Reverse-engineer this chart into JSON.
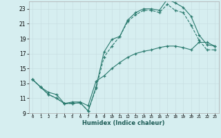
{
  "xlabel": "Humidex (Indice chaleur)",
  "ylabel": "",
  "background_color": "#d6eef0",
  "grid_color": "#c8dfe2",
  "line_color": "#2a7a6e",
  "xlim": [
    -0.5,
    23.5
  ],
  "ylim": [
    9,
    24
  ],
  "yticks": [
    9,
    11,
    13,
    15,
    17,
    19,
    21,
    23
  ],
  "xticks": [
    0,
    1,
    2,
    3,
    4,
    5,
    6,
    7,
    8,
    9,
    10,
    11,
    12,
    13,
    14,
    15,
    16,
    17,
    18,
    19,
    20,
    21,
    22,
    23
  ],
  "line1_x": [
    0,
    1,
    2,
    3,
    4,
    5,
    6,
    7,
    8,
    9,
    10,
    11,
    12,
    13,
    14,
    15,
    16,
    17,
    18,
    19,
    20,
    21,
    22,
    23
  ],
  "line1_y": [
    13.5,
    12.5,
    11.5,
    11.0,
    10.3,
    10.3,
    10.4,
    9.3,
    12.5,
    17.2,
    18.9,
    19.3,
    21.5,
    22.5,
    23.0,
    23.0,
    22.8,
    24.3,
    23.8,
    23.2,
    22.0,
    19.5,
    18.2,
    18.0
  ],
  "line2_x": [
    0,
    1,
    2,
    3,
    4,
    5,
    6,
    7,
    8,
    9,
    10,
    11,
    12,
    13,
    14,
    15,
    16,
    17,
    18,
    19,
    20,
    21,
    22,
    23
  ],
  "line2_y": [
    13.5,
    12.5,
    11.5,
    11.0,
    10.3,
    10.3,
    10.4,
    9.3,
    12.3,
    16.5,
    18.0,
    19.3,
    21.3,
    22.2,
    22.8,
    22.8,
    22.5,
    23.6,
    22.8,
    22.5,
    20.8,
    18.8,
    17.5,
    17.5
  ],
  "line3_x": [
    0,
    1,
    2,
    3,
    4,
    5,
    6,
    7,
    8,
    9,
    10,
    11,
    12,
    13,
    14,
    15,
    16,
    17,
    18,
    19,
    20,
    21,
    22,
    23
  ],
  "line3_y": [
    13.5,
    12.5,
    11.8,
    11.5,
    10.3,
    10.5,
    10.5,
    10.0,
    13.3,
    14.0,
    15.0,
    15.8,
    16.5,
    17.0,
    17.3,
    17.5,
    17.8,
    18.0,
    18.0,
    17.8,
    17.5,
    18.5,
    18.5,
    18.0
  ],
  "xlabel_fontsize": 6,
  "xtick_fontsize": 4.2,
  "ytick_fontsize": 5.5
}
